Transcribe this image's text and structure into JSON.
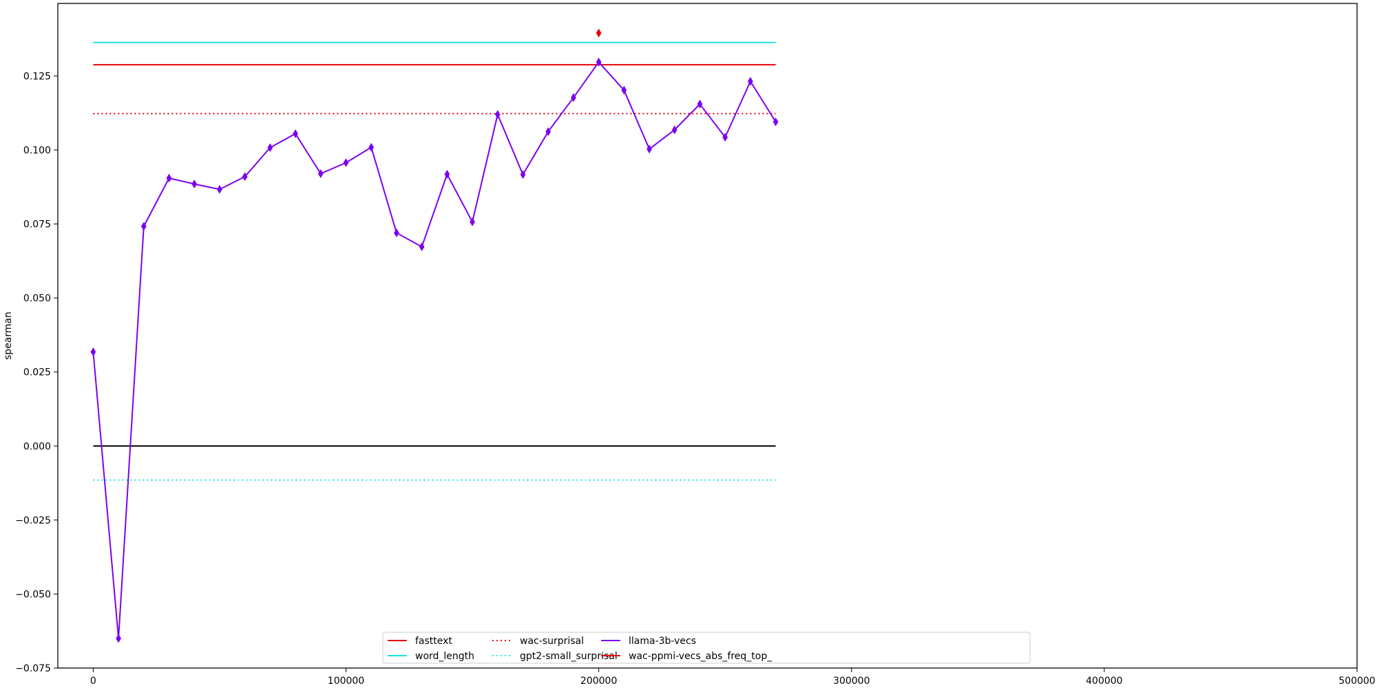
{
  "chart_data": {
    "type": "line",
    "title": "",
    "xlabel": "",
    "ylabel": "spearman",
    "xlim": [
      -14000,
      500000
    ],
    "ylim": [
      -0.075,
      0.1495
    ],
    "xticks": [
      0,
      100000,
      200000,
      300000,
      400000,
      500000
    ],
    "xtick_labels": [
      "0",
      "100000",
      "200000",
      "300000",
      "400000",
      "500000"
    ],
    "yticks": [
      -0.075,
      -0.05,
      -0.025,
      0.0,
      0.025,
      0.05,
      0.075,
      0.1,
      0.125
    ],
    "ytick_labels": [
      "−0.075",
      "−0.050",
      "−0.025",
      "0.000",
      "0.025",
      "0.050",
      "0.075",
      "0.100",
      "0.125"
    ],
    "grid": false,
    "legend_position": "bottom-center",
    "hlines": [
      {
        "name": "fasttext",
        "y": 0.1288,
        "x_range": [
          0,
          270000
        ],
        "color": "#e8000b",
        "style": "solid"
      },
      {
        "name": "word_length",
        "y": 0.1363,
        "x_range": [
          0,
          270000
        ],
        "color": "#1ce0e0",
        "style": "solid"
      },
      {
        "name": "wac-surprisal",
        "y": 0.1123,
        "x_range": [
          0,
          270000
        ],
        "color": "#e8000b",
        "style": "dotted"
      },
      {
        "name": "gpt2-small_surprisal",
        "y": -0.0115,
        "x_range": [
          0,
          270000
        ],
        "color": "#1ce0e0",
        "style": "dotted"
      },
      {
        "name": "",
        "y": 0.0,
        "x_range": [
          0,
          270000
        ],
        "color": "#000000",
        "style": "solid"
      }
    ],
    "series": [
      {
        "name": "llama-3b-vecs",
        "color": "#7b00f0",
        "marker": "diamond",
        "x": [
          0,
          10000,
          20000,
          30000,
          40000,
          50000,
          60000,
          70000,
          80000,
          90000,
          100000,
          110000,
          120000,
          130000,
          140000,
          150000,
          160000,
          170000,
          180000,
          190000,
          200000,
          210000,
          220000,
          230000,
          240000,
          250000,
          260000,
          270000
        ],
        "values": [
          0.0318,
          -0.065,
          0.0742,
          0.0905,
          0.0885,
          0.0867,
          0.091,
          0.1008,
          0.1055,
          0.092,
          0.0957,
          0.1009,
          0.072,
          0.0673,
          0.0918,
          0.0757,
          0.112,
          0.0917,
          0.1062,
          0.1177,
          0.1297,
          0.1202,
          0.1003,
          0.1068,
          0.1155,
          0.1043,
          0.1232,
          0.1095
        ]
      },
      {
        "name": "wac-ppmi-vecs_abs_freq_top_",
        "color": "#e8000b",
        "marker": "diamond",
        "x": [
          200000
        ],
        "values": [
          0.1395
        ]
      }
    ],
    "legend": [
      {
        "label": "fasttext",
        "color": "#e8000b",
        "style": "solid"
      },
      {
        "label": "word_length",
        "color": "#1ce0e0",
        "style": "solid"
      },
      {
        "label": "wac-surprisal",
        "color": "#e8000b",
        "style": "dotted"
      },
      {
        "label": "gpt2-small_surprisal",
        "color": "#1ce0e0",
        "style": "dotted"
      },
      {
        "label": "llama-3b-vecs",
        "color": "#7b00f0",
        "style": "solid"
      },
      {
        "label": "wac-ppmi-vecs_abs_freq_top_",
        "color": "#e8000b",
        "style": "solid"
      }
    ]
  }
}
